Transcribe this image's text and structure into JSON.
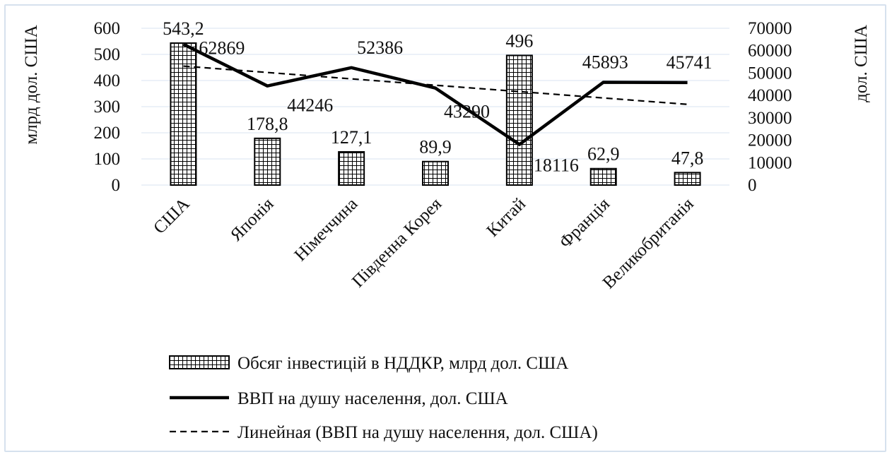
{
  "chart_data": {
    "type": "bar",
    "categories": [
      "США",
      "Японія",
      "Німеччина",
      "Південна Корея",
      "Китай",
      "Франція",
      "Великобританія"
    ],
    "y_left": {
      "label": "млрд дол. США",
      "ticks": [
        "0",
        "100",
        "200",
        "300",
        "400",
        "500",
        "600"
      ],
      "range": [
        0,
        600
      ]
    },
    "y_right": {
      "label": "дол. США",
      "ticks": [
        "0",
        "10000",
        "20000",
        "30000",
        "40000",
        "50000",
        "60000",
        "70000"
      ],
      "range": [
        0,
        70000
      ]
    },
    "series": [
      {
        "name": "Обсяг інвестицій в НДДКР, млрд дол. США",
        "kind": "bar",
        "axis": "left",
        "pattern": "grid",
        "values": [
          543.2,
          178.8,
          127.1,
          89.9,
          496,
          62.9,
          47.8
        ],
        "labels": [
          "543,2",
          "178,8",
          "127,1",
          "89,9",
          "496",
          "62,9",
          "47,8"
        ]
      },
      {
        "name": "ВВП на душу населення, дол. США",
        "kind": "line",
        "axis": "right",
        "style": "solid",
        "values": [
          62869,
          44246,
          52386,
          43290,
          18116,
          45893,
          45741
        ],
        "labels": [
          "62869",
          "44246",
          "52386",
          "43290",
          "18116",
          "45893",
          "45741"
        ]
      },
      {
        "name": "Линейная (ВВП на душу населення, дол. США)",
        "kind": "line",
        "axis": "right",
        "style": "dashed",
        "values": [
          53107,
          50260,
          47413,
          44567,
          41720,
          38873,
          36026
        ]
      }
    ],
    "grid": true,
    "legend_position": "bottom",
    "colors": {
      "bars_fill": "#ffffff",
      "bars_stroke": "#000000",
      "line": "#000000",
      "grid": "#d9e3f0"
    }
  }
}
